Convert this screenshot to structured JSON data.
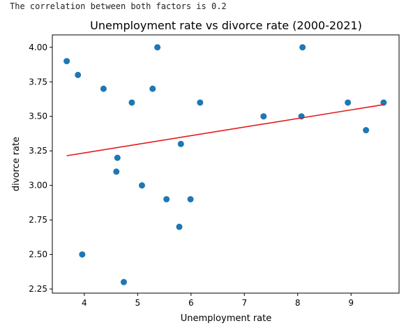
{
  "console": {
    "output": "The correlation between both factors is 0.2"
  },
  "chart_data": {
    "type": "scatter",
    "title": "Unemployment rate vs divorce rate (2000-2021)",
    "xlabel": "Unemployment rate",
    "ylabel": "divorce rate",
    "xlim": [
      3.4,
      9.9
    ],
    "ylim": [
      2.22,
      4.09
    ],
    "xticks": [
      4,
      5,
      6,
      7,
      8,
      9
    ],
    "yticks": [
      2.25,
      2.5,
      2.75,
      3.0,
      3.25,
      3.5,
      3.75,
      4.0
    ],
    "ytick_labels": [
      "2.25",
      "2.50",
      "2.75",
      "3.00",
      "3.25",
      "3.50",
      "3.75",
      "4.00"
    ],
    "grid": false,
    "series": [
      {
        "color": "#1f77b4",
        "x": [
          3.67,
          3.88,
          3.96,
          4.36,
          4.6,
          4.62,
          4.74,
          4.89,
          5.08,
          5.28,
          5.37,
          5.54,
          5.78,
          5.81,
          5.99,
          6.17,
          7.36,
          8.07,
          8.09,
          8.94,
          9.28,
          9.61
        ],
        "y": [
          3.9,
          3.8,
          2.5,
          3.7,
          3.1,
          3.2,
          2.3,
          3.6,
          3.0,
          3.7,
          4.0,
          2.9,
          2.7,
          3.3,
          2.9,
          3.6,
          3.5,
          3.5,
          4.0,
          3.6,
          3.4,
          3.6
        ]
      }
    ],
    "trendline": {
      "color": "#e41a1c",
      "x": [
        3.67,
        9.61
      ],
      "y": [
        3.215,
        3.585
      ]
    }
  }
}
